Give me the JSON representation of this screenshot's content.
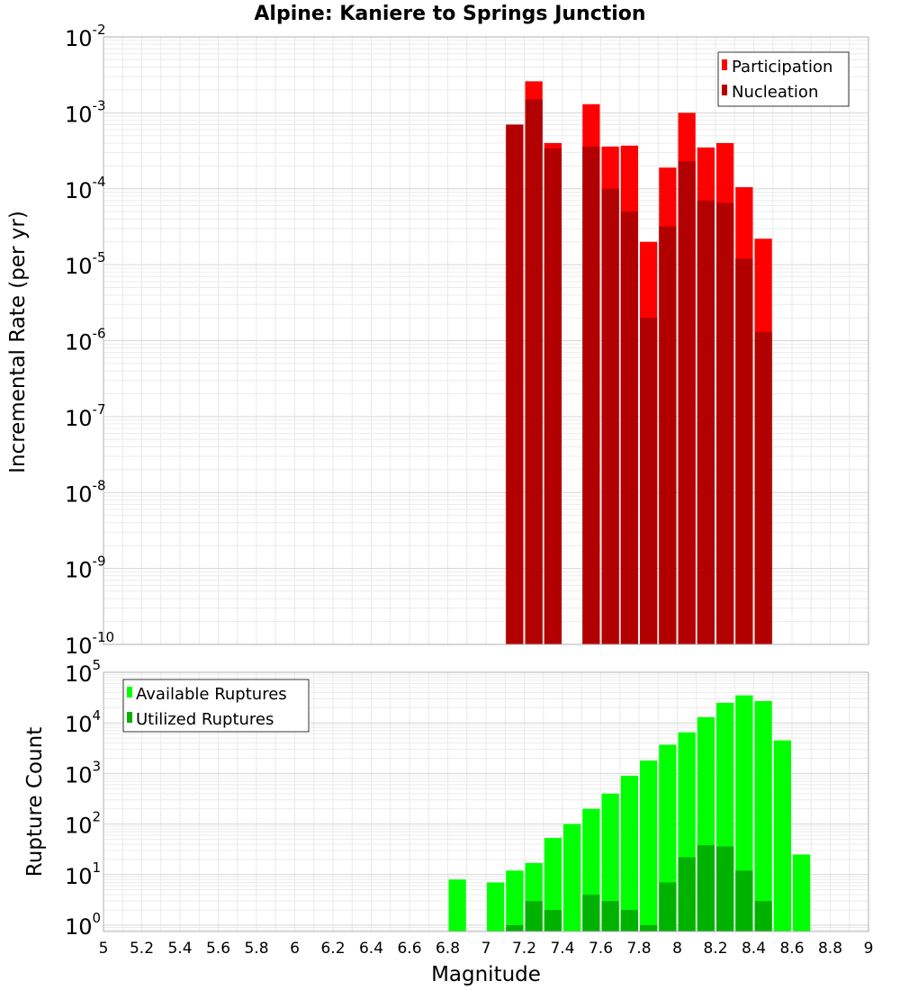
{
  "chart_data": [
    {
      "type": "bar",
      "title": "Alpine: Kaniere to Springs Junction",
      "xlabel": "",
      "ylabel": "Incremental Rate (per yr)",
      "yscale": "log",
      "ylim": [
        1e-10,
        0.01
      ],
      "xlim": [
        5,
        9
      ],
      "bar_width": 0.1,
      "grid": true,
      "legend_position": "top-right",
      "x": [
        7.15,
        7.25,
        7.35,
        7.55,
        7.65,
        7.75,
        7.85,
        7.95,
        8.05,
        8.15,
        8.25,
        8.35,
        8.45
      ],
      "series": [
        {
          "name": "Participation",
          "color": "#ff0000",
          "values": [
            0.0007,
            0.0026,
            0.0004,
            0.0013,
            0.00036,
            0.00037,
            2e-05,
            0.00019,
            0.001,
            0.00035,
            0.0004,
            0.000105,
            2.2e-05
          ]
        },
        {
          "name": "Nucleation",
          "color": "#b20000",
          "values": [
            0.0007,
            0.0015,
            0.00034,
            0.00036,
            0.0001,
            5e-05,
            2e-06,
            3.2e-05,
            0.00023,
            7e-05,
            6.5e-05,
            1.2e-05,
            1.3e-06
          ]
        }
      ],
      "ytick_exponents": [
        -10,
        -9,
        -8,
        -7,
        -6,
        -5,
        -4,
        -3,
        -2
      ]
    },
    {
      "type": "bar",
      "title": "",
      "xlabel": "Magnitude",
      "ylabel": "Rupture Count",
      "yscale": "log",
      "ylim": [
        0.75,
        100000
      ],
      "xlim": [
        5,
        9
      ],
      "bar_width": 0.1,
      "grid": true,
      "legend_position": "top-left",
      "series": [
        {
          "name": "Available Ruptures",
          "color": "#00ff00",
          "x": [
            6.85,
            7.05,
            7.15,
            7.25,
            7.35,
            7.45,
            7.55,
            7.65,
            7.75,
            7.85,
            7.95,
            8.05,
            8.15,
            8.25,
            8.35,
            8.45,
            8.55,
            8.65
          ],
          "values": [
            8,
            7,
            12,
            17,
            53,
            100,
            200,
            400,
            900,
            1800,
            3700,
            6500,
            13000,
            25000,
            35000,
            27000,
            4500,
            25
          ]
        },
        {
          "name": "Utilized Ruptures",
          "color": "#00b200",
          "x": [
            7.15,
            7.25,
            7.35,
            7.55,
            7.65,
            7.75,
            7.85,
            7.95,
            8.05,
            8.15,
            8.25,
            8.35,
            8.45
          ],
          "values": [
            1,
            3,
            2,
            4,
            3,
            2,
            1,
            7,
            22,
            38,
            36,
            12,
            3
          ]
        }
      ],
      "ytick_exponents": [
        0,
        1,
        2,
        3,
        4,
        5
      ],
      "xticks": [
        "5",
        "5.2",
        "5.4",
        "5.6",
        "5.8",
        "6",
        "6.2",
        "6.4",
        "6.6",
        "6.8",
        "7",
        "7.2",
        "7.4",
        "7.6",
        "7.8",
        "8",
        "8.2",
        "8.4",
        "8.6",
        "8.8",
        "9"
      ]
    }
  ]
}
